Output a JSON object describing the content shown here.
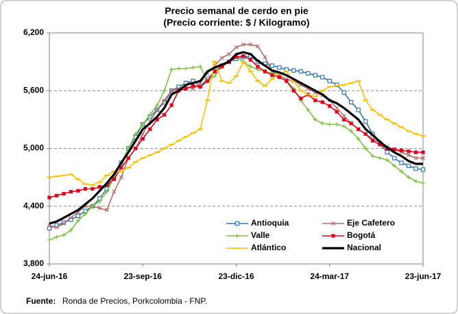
{
  "chart_data": {
    "type": "line",
    "title": "Precio semanal de cerdo en pie",
    "subtitle": "(Precio corriente: $ / Kilogramo)",
    "source_label": "Fuente:",
    "source": "Ronda de Precios, Porkcolombia  - FNP.",
    "categories": [
      "24-jun-16",
      null,
      null,
      null,
      null,
      null,
      null,
      null,
      null,
      null,
      null,
      null,
      null,
      "23-sep-16",
      null,
      null,
      null,
      null,
      null,
      null,
      null,
      null,
      null,
      null,
      null,
      null,
      "23-dic-16",
      null,
      null,
      null,
      null,
      null,
      null,
      null,
      null,
      null,
      null,
      null,
      null,
      "24-mar-17",
      null,
      null,
      null,
      null,
      null,
      null,
      null,
      null,
      null,
      null,
      null,
      null,
      "23-jun-17"
    ],
    "ylim": [
      3800,
      6200
    ],
    "yticks": [
      {
        "value": 3800,
        "label": "3,800"
      },
      {
        "value": 4400,
        "label": "4,400"
      },
      {
        "value": 5000,
        "label": "5,000"
      },
      {
        "value": 5600,
        "label": "5,600"
      },
      {
        "value": 6200,
        "label": "6,200"
      }
    ],
    "grid": true,
    "legend": "lower right",
    "series": [
      {
        "name": "Antioquia",
        "color": "#2e75b6",
        "marker": "square-open",
        "values": [
          4170,
          4200,
          4230,
          4260,
          4300,
          4350,
          4400,
          4480,
          4580,
          4700,
          4850,
          5000,
          5120,
          5250,
          5330,
          5400,
          5480,
          5600,
          5640,
          5680,
          5700,
          5650,
          5720,
          5800,
          5860,
          5900,
          5930,
          5950,
          5960,
          5900,
          5880,
          5860,
          5840,
          5820,
          5810,
          5800,
          5780,
          5760,
          5740,
          5700,
          5660,
          5580,
          5480,
          5400,
          5280,
          5150,
          5050,
          4960,
          4900,
          4850,
          4820,
          4790,
          4780
        ]
      },
      {
        "name": "Eje Cafetero",
        "color": "#b36b6b",
        "marker": "x",
        "values": [
          4200,
          4180,
          4220,
          4280,
          4340,
          4400,
          4400,
          4380,
          4360,
          4550,
          4700,
          4900,
          5000,
          5150,
          5280,
          5400,
          5500,
          5600,
          5620,
          5640,
          5620,
          5680,
          5780,
          5860,
          5940,
          5980,
          6050,
          6080,
          6080,
          6060,
          5950,
          5800,
          5760,
          5720,
          5700,
          5660,
          5620,
          5580,
          5550,
          5500,
          5420,
          5340,
          5260,
          5200,
          5150,
          5100,
          5060,
          5020,
          4990,
          4960,
          4930,
          4900,
          4900
        ]
      },
      {
        "name": "Valle",
        "color": "#7dc242",
        "marker": "plus",
        "values": [
          4050,
          4080,
          4100,
          4150,
          4250,
          4320,
          4400,
          4450,
          4550,
          4700,
          4850,
          5000,
          5150,
          5250,
          5350,
          5450,
          5600,
          5820,
          5830,
          5830,
          5840,
          5850,
          5700,
          5750,
          5850,
          5900,
          5950,
          5900,
          5850,
          5820,
          5800,
          5780,
          5740,
          5700,
          5620,
          5500,
          5400,
          5300,
          5260,
          5250,
          5250,
          5230,
          5180,
          5100,
          5000,
          4920,
          4900,
          4880,
          4820,
          4760,
          4700,
          4660,
          4640
        ]
      },
      {
        "name": "Bogotá",
        "color": "#e3001b",
        "marker": "square",
        "values": [
          4490,
          4510,
          4530,
          4550,
          4560,
          4580,
          4580,
          4600,
          4620,
          4680,
          4800,
          4900,
          5000,
          5100,
          5200,
          5300,
          5350,
          5450,
          5600,
          5620,
          5650,
          5640,
          5700,
          5800,
          5850,
          5900,
          5950,
          5960,
          5920,
          5850,
          5800,
          5760,
          5740,
          5700,
          5600,
          5520,
          5560,
          5500,
          5480,
          5440,
          5380,
          5300,
          5260,
          5200,
          5150,
          5080,
          5040,
          5000,
          4990,
          4980,
          4970,
          4960,
          4960
        ]
      },
      {
        "name": "Atlántico",
        "color": "#ffc000",
        "marker": "dash",
        "values": [
          4700,
          4710,
          4720,
          4730,
          4680,
          4630,
          4620,
          4650,
          4720,
          4760,
          4760,
          4800,
          4860,
          4900,
          4930,
          4960,
          5000,
          5040,
          5080,
          5120,
          5160,
          5200,
          5500,
          5900,
          5700,
          5680,
          5750,
          5900,
          5800,
          5700,
          5650,
          5720,
          5780,
          5800,
          5700,
          5600,
          5560,
          5540,
          5600,
          5640,
          5650,
          5660,
          5680,
          5700,
          5500,
          5400,
          5350,
          5300,
          5260,
          5220,
          5180,
          5150,
          5130
        ]
      },
      {
        "name": "Nacional",
        "color": "#000000",
        "marker": "none",
        "values": [
          4220,
          4240,
          4280,
          4320,
          4360,
          4420,
          4480,
          4560,
          4640,
          4730,
          4850,
          4960,
          5080,
          5200,
          5260,
          5330,
          5420,
          5560,
          5600,
          5660,
          5680,
          5700,
          5800,
          5840,
          5870,
          5900,
          5980,
          6000,
          5980,
          5910,
          5860,
          5810,
          5790,
          5760,
          5720,
          5680,
          5640,
          5600,
          5560,
          5500,
          5470,
          5420,
          5360,
          5300,
          5200,
          5140,
          5070,
          5010,
          4960,
          4920,
          4870,
          4840,
          4840
        ]
      }
    ]
  }
}
